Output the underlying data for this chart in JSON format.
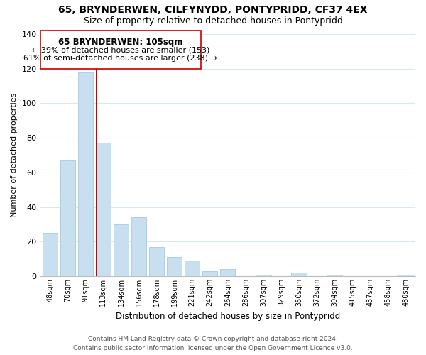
{
  "title": "65, BRYNDERWEN, CILFYNYDD, PONTYPRIDD, CF37 4EX",
  "subtitle": "Size of property relative to detached houses in Pontypridd",
  "xlabel": "Distribution of detached houses by size in Pontypridd",
  "ylabel": "Number of detached properties",
  "bar_labels": [
    "48sqm",
    "70sqm",
    "91sqm",
    "113sqm",
    "134sqm",
    "156sqm",
    "178sqm",
    "199sqm",
    "221sqm",
    "242sqm",
    "264sqm",
    "286sqm",
    "307sqm",
    "329sqm",
    "350sqm",
    "372sqm",
    "394sqm",
    "415sqm",
    "437sqm",
    "458sqm",
    "480sqm"
  ],
  "bar_values": [
    25,
    67,
    118,
    77,
    30,
    34,
    17,
    11,
    9,
    3,
    4,
    0,
    1,
    0,
    2,
    0,
    1,
    0,
    0,
    0,
    1
  ],
  "bar_color": "#c8dff0",
  "bar_edge_color": "#a8c8e0",
  "marker_line_color": "#cc0000",
  "ylim": [
    0,
    140
  ],
  "yticks": [
    0,
    20,
    40,
    60,
    80,
    100,
    120,
    140
  ],
  "annotation_title": "65 BRYNDERWEN: 105sqm",
  "annotation_line1": "← 39% of detached houses are smaller (153)",
  "annotation_line2": "61% of semi-detached houses are larger (238) →",
  "footer_line1": "Contains HM Land Registry data © Crown copyright and database right 2024.",
  "footer_line2": "Contains public sector information licensed under the Open Government Licence v3.0.",
  "background_color": "#ffffff",
  "grid_color": "#d8e8f0",
  "title_fontsize": 10,
  "subtitle_fontsize": 9
}
